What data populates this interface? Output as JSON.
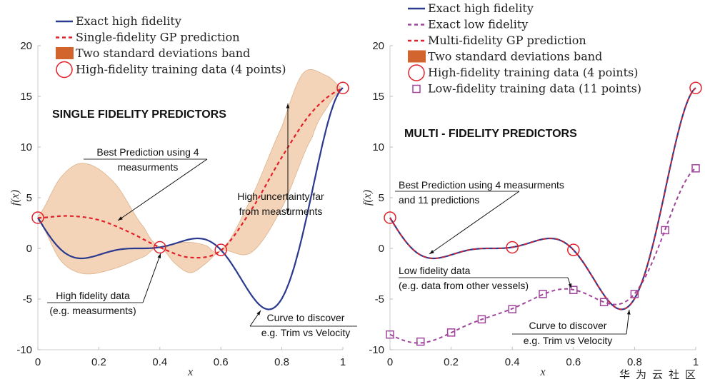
{
  "colors": {
    "exact_high": "#2b3a8f",
    "gp": "#e0202a",
    "low": "#a0459c",
    "band": "#f4d4b8",
    "band_legend": "#d2652d",
    "marker": "#e0202a"
  },
  "chart_data": [
    {
      "type": "line",
      "title": "SINGLE FIDELITY PREDICTORS",
      "xlabel": "x",
      "ylabel": "f(x)",
      "xlim": [
        0,
        1
      ],
      "ylim": [
        -10,
        20
      ],
      "xticks": [
        "0",
        "0.2",
        "0.4",
        "0.6",
        "0.8",
        "1"
      ],
      "yticks": [
        "-10",
        "-5",
        "0",
        "5",
        "10",
        "15",
        "20"
      ],
      "legend": {
        "position": "top-left",
        "entries": [
          "Exact high fidelity",
          "Single-fidelity GP prediction",
          "Two standard deviations band",
          "High-fidelity training data (4 points)"
        ]
      },
      "exact_high_function": "(6x-2)^2 sin(12x-4)",
      "gp_prediction": {
        "x": [
          0,
          0.1,
          0.2,
          0.3,
          0.4,
          0.5,
          0.6,
          0.7,
          0.8,
          0.9,
          1
        ],
        "y": [
          3,
          3.2,
          2.8,
          1.6,
          0.1,
          -0.9,
          -0.2,
          3.8,
          9,
          13.5,
          15.8
        ]
      },
      "band_upper": {
        "x": [
          0,
          0.075,
          0.15,
          0.25,
          0.35,
          0.4,
          0.45,
          0.5,
          0.55,
          0.6,
          0.7,
          0.8,
          0.87,
          0.95,
          1
        ],
        "y": [
          3.2,
          7,
          8.4,
          6.5,
          2,
          0.1,
          0.5,
          0.6,
          0.3,
          -0.2,
          5,
          12,
          17.3,
          17,
          15.8
        ]
      },
      "band_lower": {
        "x": [
          0,
          0.075,
          0.15,
          0.25,
          0.35,
          0.4,
          0.45,
          0.5,
          0.55,
          0.6,
          0.7,
          0.8,
          0.9,
          0.95,
          1
        ],
        "y": [
          2.8,
          -1.2,
          -2.5,
          -2,
          -0.8,
          0.1,
          -1.5,
          -2.4,
          -1.5,
          -0.2,
          -0.4,
          4,
          11,
          14,
          15.8
        ]
      },
      "hf_points": {
        "x": [
          0,
          0.4,
          0.6,
          1
        ],
        "y": [
          3.03,
          0.11,
          -0.15,
          15.83
        ]
      },
      "annotations": [
        {
          "lines": [
            "Best Prediction using 4",
            "measurments"
          ]
        },
        {
          "lines": [
            "High uncertainty far",
            "from measurments"
          ]
        },
        {
          "lines": [
            "High fidelity data",
            "(e.g. measurments)"
          ]
        },
        {
          "lines": [
            "Curve to discover",
            "e.g. Trim vs Velocity"
          ]
        }
      ]
    },
    {
      "type": "line",
      "title": "MULTI - FIDELITY PREDICTORS",
      "xlabel": "x",
      "ylabel": "f(x)",
      "xlim": [
        0,
        1
      ],
      "ylim": [
        -10,
        20
      ],
      "xticks": [
        "0",
        "0.2",
        "0.4",
        "0.6",
        "0.8",
        "1"
      ],
      "yticks": [
        "-10",
        "-5",
        "0",
        "5",
        "10",
        "15",
        "20"
      ],
      "legend": {
        "position": "top-left",
        "entries": [
          "Exact high fidelity",
          "Exact low fidelity",
          "Multi-fidelity GP prediction",
          "Two standard deviations band",
          "High-fidelity training data (4 points)",
          "Low-fidelity training data (11 points)"
        ]
      },
      "exact_high_function": "(6x-2)^2 sin(12x-4)",
      "exact_low_function": "0.5(6x-2)^2 sin(12x-4) + 10(x-0.5) - 5",
      "hf_points": {
        "x": [
          0,
          0.4,
          0.6,
          1
        ],
        "y": [
          3.03,
          0.11,
          -0.15,
          15.83
        ]
      },
      "lf_points": {
        "x": [
          0,
          0.1,
          0.2,
          0.3,
          0.4,
          0.5,
          0.6,
          0.7,
          0.8,
          0.9,
          1
        ],
        "y": [
          -8.5,
          -9.2,
          -8.3,
          -7,
          -6,
          -4.5,
          -4.1,
          -5.3,
          -4.5,
          1.8,
          7.9
        ]
      },
      "annotations": [
        {
          "lines": [
            "Best Prediction using 4 measurments",
            "and 11 predictions"
          ]
        },
        {
          "lines": [
            "Low fidelity data",
            "(e.g. data from other vessels)"
          ]
        },
        {
          "lines": [
            "Curve to discover",
            "e.g. Trim vs Velocity"
          ]
        }
      ]
    }
  ],
  "watermark": "华为云社区"
}
